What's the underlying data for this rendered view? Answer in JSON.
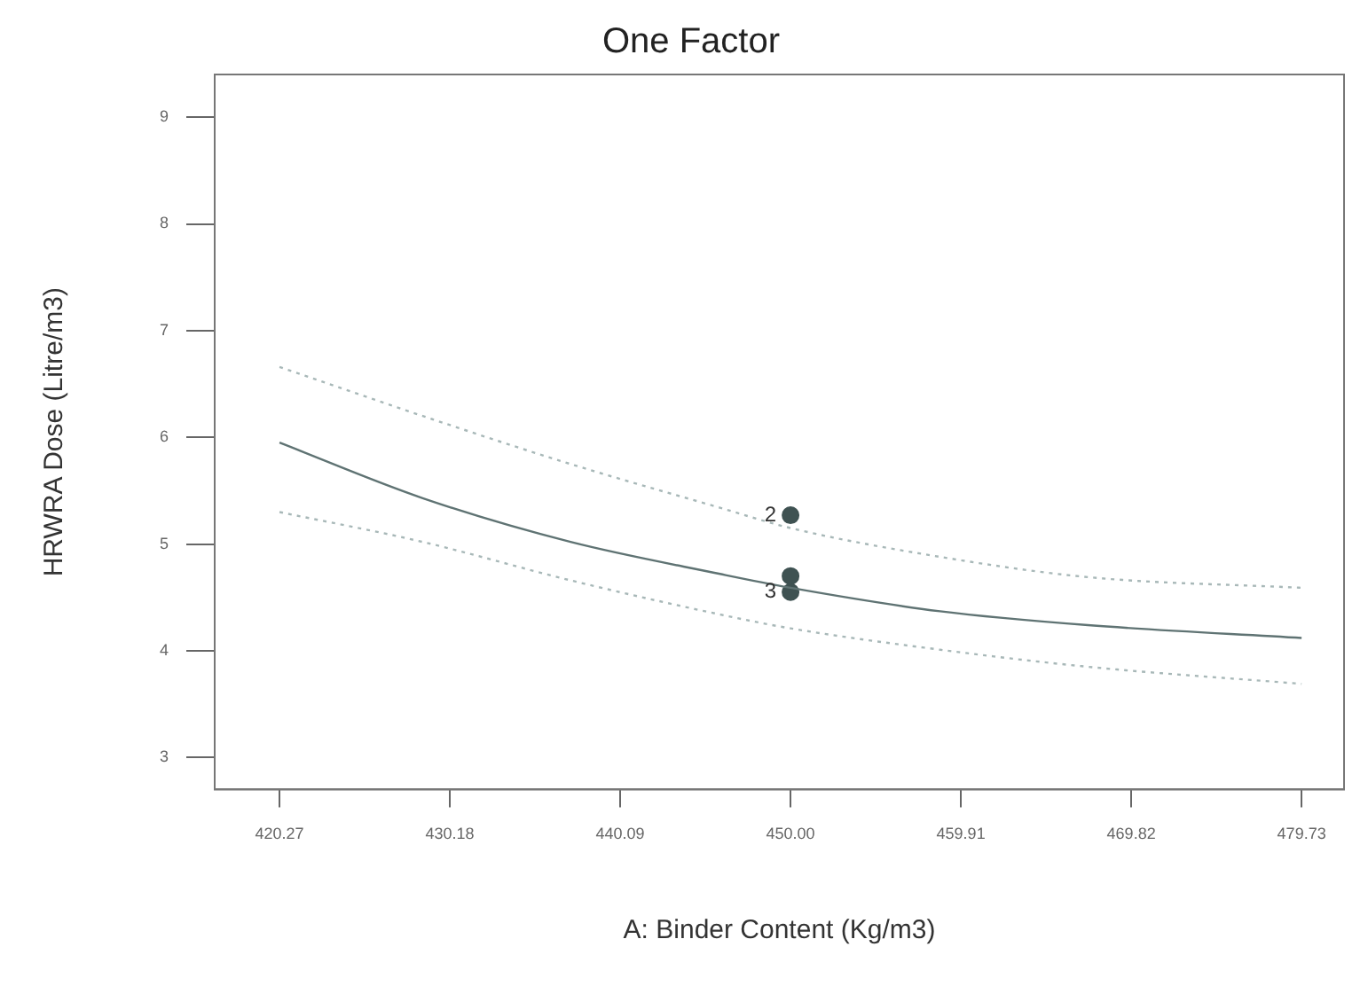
{
  "chart_data": {
    "type": "line",
    "title": "One Factor",
    "xlabel": "A: Binder Content (Kg/m3)",
    "ylabel": "HRWRA Dose (Litre/m3)",
    "xlim": [
      416.5,
      482.2
    ],
    "xticks": [
      420.27,
      430.18,
      440.09,
      {
        "value": 450.0,
        "label": "450.00"
      },
      459.91,
      469.82,
      479.73
    ],
    "ylim": [
      2.7,
      9.4
    ],
    "yticks": [
      3,
      4,
      5,
      6,
      7,
      8,
      9
    ],
    "grid": false,
    "legend": false,
    "series": [
      {
        "color": "#5f7373",
        "line_style": "solid",
        "x": [
          420.27,
          428.6,
          437.2,
          445.9,
          450.0,
          458.7,
          467.3,
          479.73
        ],
        "values": [
          5.95,
          5.43,
          5.02,
          4.72,
          4.59,
          4.37,
          4.24,
          4.12
        ]
      },
      {
        "color": "#a8b8b8",
        "line_style": "dotted",
        "x": [
          420.27,
          428.6,
          437.2,
          445.9,
          450.0,
          458.7,
          467.3,
          479.73
        ],
        "values": [
          6.66,
          6.2,
          5.75,
          5.34,
          5.15,
          4.88,
          4.69,
          4.59
        ]
      },
      {
        "color": "#a8b8b8",
        "line_style": "dotted",
        "x": [
          420.27,
          428.6,
          437.2,
          445.9,
          450.0,
          458.7,
          467.3,
          479.73
        ],
        "values": [
          5.3,
          5.02,
          4.66,
          4.34,
          4.21,
          4.01,
          3.85,
          3.69
        ]
      },
      {
        "type": "scatter",
        "color": "#3f5252",
        "marker": "circle",
        "x": [
          450.0,
          450.0,
          450.0
        ],
        "values": [
          5.27,
          4.7,
          4.55
        ]
      }
    ],
    "annotations": [
      {
        "text": "2",
        "x": 450.0,
        "y": 5.27
      },
      {
        "text": "3",
        "x": 450.0,
        "y": 4.55
      }
    ]
  }
}
